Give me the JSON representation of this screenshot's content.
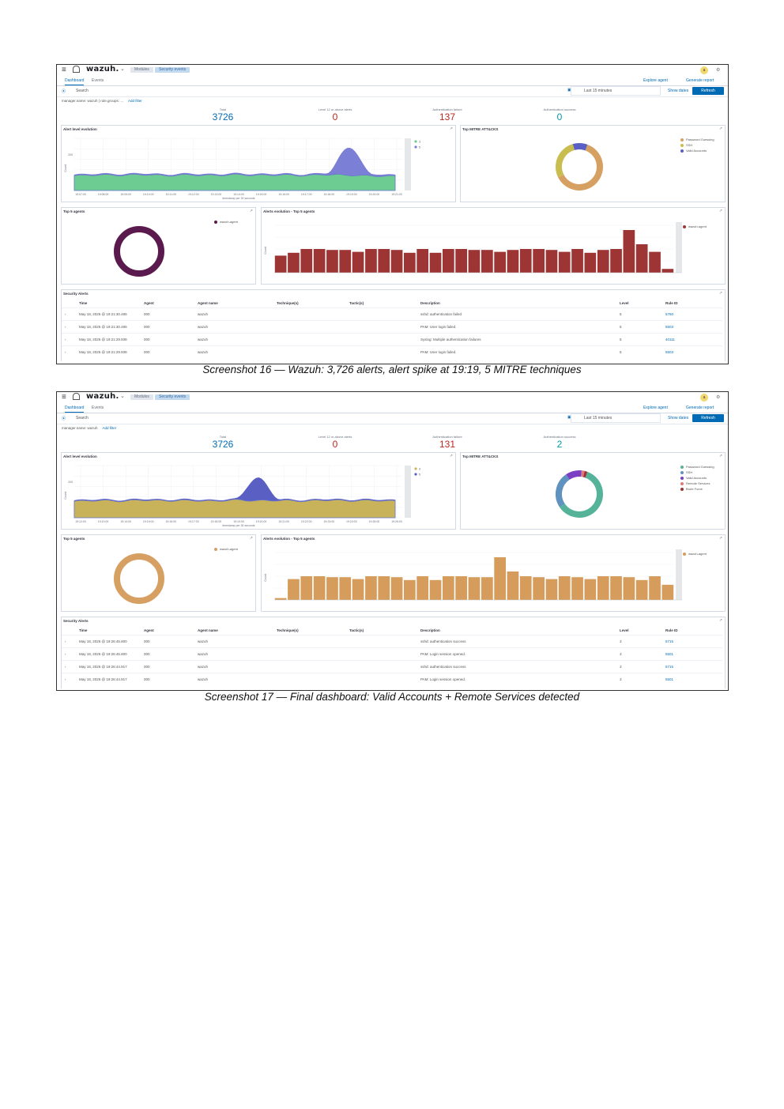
{
  "captions": [
    "Screenshot 16 — Wazuh: 3,726 alerts, alert spike at 19:19, 5 MITRE techniques",
    "Screenshot 17 — Final dashboard: Valid Accounts + Remote Services detected"
  ],
  "app": {
    "logo": "wazuh.",
    "breadcrumb_modules": "Modules",
    "breadcrumb_current": "Security events",
    "tab_dashboard": "Dashboard",
    "tab_events": "Events",
    "link_explore_agent": "Explore agent",
    "link_generate_report": "Generate report",
    "refresh_label": "Refresh",
    "show_dates": "Show dates",
    "date_range": "Last 15 minutes",
    "search_placeholder": "Search",
    "add_filter": "Add filter",
    "avatar": "a",
    "chart_title_alerts": "Alert level evolution",
    "chart_title_mitre": "Top MITRE ATT&CKS",
    "chart_title_agents": "Top 5 agents",
    "chart_title_evolution": "Alerts evolution - Top 5 agents",
    "table_title": "Security Alerts",
    "y_axis_count": "Count",
    "x_axis_timestamp": "timestamp per 30 seconds"
  },
  "metric_labels": [
    "Total",
    "Level 12 or above alerts",
    "Authentication failure",
    "Authentication success"
  ],
  "table_headers": [
    "Time",
    "Agent",
    "Agent name",
    "Technique(s)",
    "Tactic(s)",
    "Description",
    "Level",
    "Rule ID"
  ],
  "shots": [
    {
      "filter_text": "manager.name: wazuh | rule.groups: ...",
      "metrics": [
        "3726",
        "0",
        "137",
        "0"
      ],
      "alerts_color": "#6dcc91",
      "spike_color": "#7b7fd6",
      "mitre_legend": [
        "Password Guessing",
        "SSH",
        "Valid Accounts"
      ],
      "mitre_colors": [
        "#d6a063",
        "#c9bd4f",
        "#5a5fc4"
      ],
      "agents_legend": [
        "wazuh-agent"
      ],
      "agents_color": "#5b1a4e",
      "bars_color": "#9e3535",
      "rows": [
        {
          "time": "May 18, 2025 @ 19:21:30.485",
          "agent": "000",
          "name": "wazuh",
          "desc": "sshd: authentication failed",
          "level": "5",
          "rule": "5760"
        },
        {
          "time": "May 18, 2025 @ 19:21:30.485",
          "agent": "000",
          "name": "wazuh",
          "desc": "PAM: User login failed.",
          "level": "5",
          "rule": "5503"
        },
        {
          "time": "May 18, 2025 @ 19:21:29.938",
          "agent": "000",
          "name": "wazuh",
          "desc": "Syslog: Multiple authentication failures",
          "level": "5",
          "rule": "40111"
        },
        {
          "time": "May 18, 2025 @ 19:21:29.938",
          "agent": "000",
          "name": "wazuh",
          "desc": "PAM: User login failed.",
          "level": "5",
          "rule": "5503"
        }
      ]
    },
    {
      "filter_text": "manager.name: wazuh",
      "metrics": [
        "3726",
        "0",
        "131",
        "2"
      ],
      "alerts_color": "#c9b35a",
      "spike_color": "#5a5fc4",
      "mitre_legend": [
        "Password Guessing",
        "SSH",
        "Valid Accounts",
        "Remote Services",
        "Brute Force"
      ],
      "mitre_colors": [
        "#54b399",
        "#6092c0",
        "#7b3fc4",
        "#e07b7b",
        "#9e3535"
      ],
      "agents_legend": [
        "wazuh-agent"
      ],
      "agents_color": "#d6a063",
      "bars_color": "#d69c5c",
      "rows": [
        {
          "time": "May 18, 2025 @ 19:26:45.800",
          "agent": "000",
          "name": "wazuh",
          "desc": "sshd: authentication success",
          "level": "3",
          "rule": "5715"
        },
        {
          "time": "May 18, 2025 @ 19:26:45.800",
          "agent": "000",
          "name": "wazuh",
          "desc": "PAM: Login session opened.",
          "level": "3",
          "rule": "5501"
        },
        {
          "time": "May 18, 2025 @ 19:26:44.917",
          "agent": "000",
          "name": "wazuh",
          "desc": "sshd: authentication success",
          "level": "3",
          "rule": "5715"
        },
        {
          "time": "May 18, 2025 @ 19:26:44.917",
          "agent": "000",
          "name": "wazuh",
          "desc": "PAM: Login session opened.",
          "level": "3",
          "rule": "5501"
        }
      ]
    }
  ],
  "chart_data": [
    {
      "type": "area",
      "title": "Alert level evolution",
      "x": [
        "19:07:00",
        "19:08:00",
        "19:09:00",
        "19:10:00",
        "19:11:00",
        "19:12:00",
        "19:13:00",
        "19:14:00",
        "19:15:00",
        "19:16:00",
        "19:17:00",
        "19:18:00",
        "19:19:00",
        "19:20:00",
        "19:21:00"
      ],
      "series": [
        {
          "name": "3",
          "values": [
            85,
            90,
            88,
            92,
            86,
            90,
            87,
            91,
            88,
            90,
            86,
            92,
            88,
            84,
            82
          ]
        },
        {
          "name": "5",
          "values": [
            5,
            6,
            5,
            6,
            5,
            6,
            5,
            6,
            5,
            6,
            5,
            8,
            160,
            10,
            6
          ]
        }
      ],
      "ylim": [
        0,
        300
      ],
      "ylabel": "Count",
      "xlabel": "timestamp per 30 seconds"
    },
    {
      "type": "pie",
      "title": "Top MITRE ATT&CKS",
      "labels": [
        "Password Guessing",
        "SSH",
        "Valid Accounts"
      ],
      "values": [
        62,
        28,
        10
      ]
    },
    {
      "type": "pie",
      "title": "Top 5 agents",
      "labels": [
        "wazuh-agent"
      ],
      "values": [
        100
      ]
    },
    {
      "type": "bar",
      "title": "Alerts evolution - Top 5 agents",
      "values": [
        90,
        105,
        125,
        125,
        120,
        120,
        110,
        125,
        125,
        120,
        105,
        125,
        105,
        125,
        125,
        120,
        120,
        110,
        120,
        125,
        125,
        120,
        110,
        125,
        105,
        120,
        125,
        225,
        150,
        110,
        20
      ],
      "ylim": [
        0,
        250
      ],
      "ylabel": "Count"
    },
    {
      "type": "area",
      "title": "Alert level evolution",
      "x": [
        "19:12:00",
        "19:13:00",
        "19:14:00",
        "19:15:00",
        "19:16:00",
        "19:17:00",
        "19:18:00",
        "19:19:00",
        "19:20:00",
        "19:21:00",
        "19:22:00",
        "19:23:00",
        "19:24:00",
        "19:25:00",
        "19:26:00"
      ],
      "series": [
        {
          "name": "3",
          "values": [
            95,
            100,
            96,
            102,
            98,
            100,
            96,
            102,
            98,
            100,
            96,
            102,
            98,
            100,
            96
          ]
        },
        {
          "name": "5",
          "values": [
            4,
            5,
            4,
            5,
            4,
            5,
            4,
            5,
            130,
            5,
            4,
            5,
            4,
            5,
            4
          ]
        }
      ],
      "ylim": [
        0,
        300
      ],
      "ylabel": "Count",
      "xlabel": "timestamp per 30 seconds"
    },
    {
      "type": "pie",
      "title": "Top MITRE ATT&CKS",
      "labels": [
        "Password Guessing",
        "SSH",
        "Valid Accounts",
        "Remote Services",
        "Brute Force"
      ],
      "values": [
        60,
        25,
        11,
        2,
        2
      ]
    },
    {
      "type": "pie",
      "title": "Top 5 agents",
      "labels": [
        "wazuh-agent"
      ],
      "values": [
        100
      ]
    },
    {
      "type": "bar",
      "title": "Alerts evolution - Top 5 agents",
      "values": [
        10,
        110,
        125,
        125,
        120,
        120,
        110,
        125,
        125,
        120,
        105,
        125,
        105,
        125,
        125,
        120,
        120,
        225,
        150,
        125,
        120,
        110,
        125,
        120,
        110,
        125,
        125,
        120,
        105,
        125,
        80
      ],
      "ylim": [
        0,
        250
      ],
      "ylabel": "Count"
    }
  ]
}
